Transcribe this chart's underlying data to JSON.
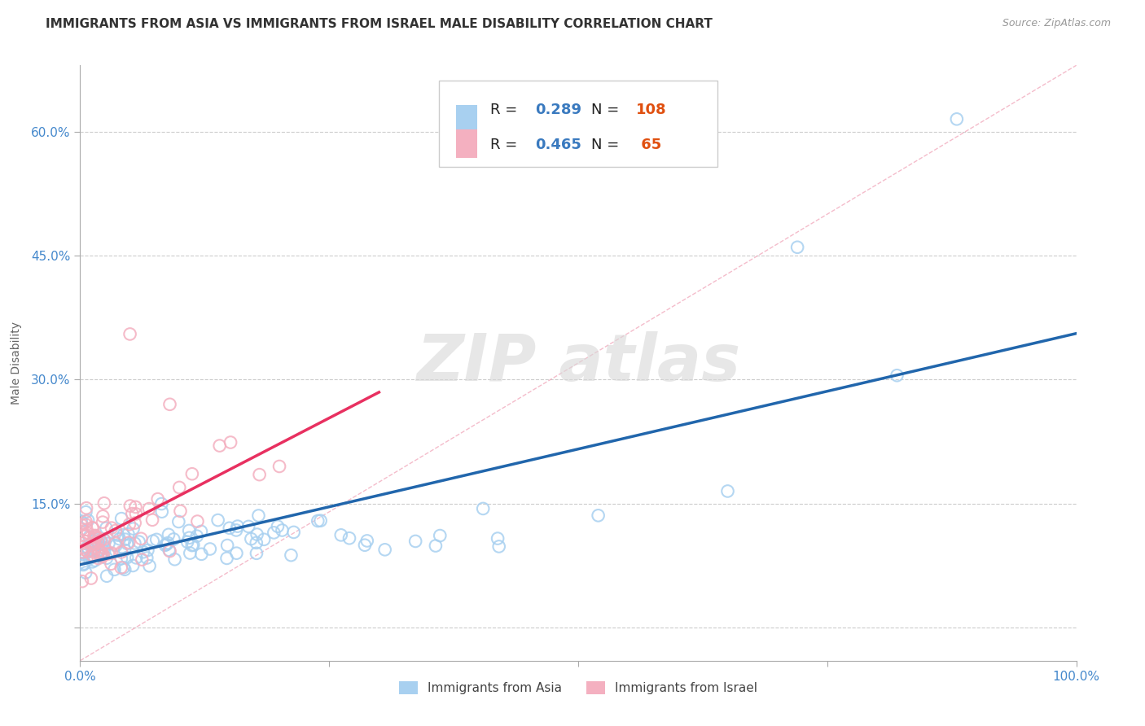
{
  "title": "IMMIGRANTS FROM ASIA VS IMMIGRANTS FROM ISRAEL MALE DISABILITY CORRELATION CHART",
  "source": "Source: ZipAtlas.com",
  "ylabel": "Male Disability",
  "xlim": [
    0.0,
    1.0
  ],
  "ylim": [
    -0.04,
    0.68
  ],
  "y_ticks": [
    0.0,
    0.15,
    0.3,
    0.45,
    0.6
  ],
  "y_tick_labels": [
    "",
    "15.0%",
    "30.0%",
    "45.0%",
    "60.0%"
  ],
  "blue_color": "#a8d0f0",
  "pink_color": "#f4b0c0",
  "blue_line_color": "#2166ac",
  "pink_line_color": "#e83060",
  "diag_color": "#f0b0c0",
  "grid_color": "#cccccc",
  "title_fontsize": 11,
  "source_fontsize": 9,
  "blue_n": 108,
  "pink_n": 65,
  "blue_R": "0.289",
  "pink_R": "0.465",
  "blue_N": "108",
  "pink_N": " 65",
  "tick_color": "#4488cc",
  "label_color": "#666666",
  "legend_text_color": "#222222",
  "legend_val_color": "#3a7abf",
  "legend_count_color": "#e05030"
}
